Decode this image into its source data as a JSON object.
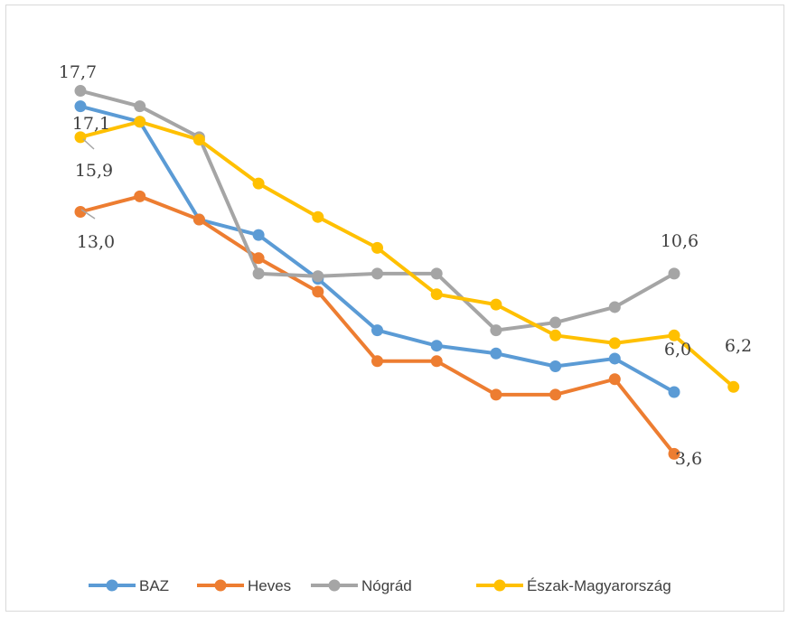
{
  "chart_data": {
    "type": "line",
    "title": "",
    "xlabel": "",
    "ylabel": "",
    "ylim": [
      0,
      20
    ],
    "grid": false,
    "legend_position": "bottom",
    "x": [
      1,
      2,
      3,
      4,
      5,
      6,
      7,
      8,
      9,
      10,
      11,
      12,
      13
    ],
    "series": [
      {
        "name": "BAZ",
        "color": "#5b9bd5",
        "values": [
          17.1,
          16.5,
          12.7,
          12.1,
          10.4,
          8.4,
          7.8,
          7.5,
          7.0,
          7.3,
          6.0,
          null,
          null
        ]
      },
      {
        "name": "Heves",
        "color": "#ed7d31",
        "values": [
          13.0,
          13.6,
          12.7,
          11.2,
          9.9,
          7.2,
          7.2,
          5.9,
          5.9,
          6.5,
          3.6,
          null,
          null
        ]
      },
      {
        "name": "Nógrád",
        "color": "#a5a5a5",
        "values": [
          17.7,
          17.1,
          15.9,
          10.6,
          10.5,
          10.6,
          10.6,
          8.4,
          8.7,
          9.3,
          10.6,
          null,
          null
        ]
      },
      {
        "name": "Észak-Magyarország",
        "color": "#ffc000",
        "values": [
          15.9,
          16.5,
          15.8,
          14.1,
          12.8,
          11.6,
          9.8,
          9.4,
          8.2,
          7.9,
          8.2,
          6.2,
          null
        ]
      }
    ],
    "annotations": [
      {
        "text": "17,7",
        "series": "Nógrád",
        "point": 1
      },
      {
        "text": "17,1",
        "series": "BAZ",
        "point": 1
      },
      {
        "text": "15,9",
        "series": "Észak-Magyarország",
        "point": 1
      },
      {
        "text": "13,0",
        "series": "Heves",
        "point": 1
      },
      {
        "text": "10,6",
        "series": "Nógrád",
        "point": 11
      },
      {
        "text": "6,0",
        "series": "BAZ",
        "point": 11
      },
      {
        "text": "6,2",
        "series": "Észak-Magyarország",
        "point": 12
      },
      {
        "text": "3,6",
        "series": "Heves",
        "point": 11
      }
    ]
  }
}
